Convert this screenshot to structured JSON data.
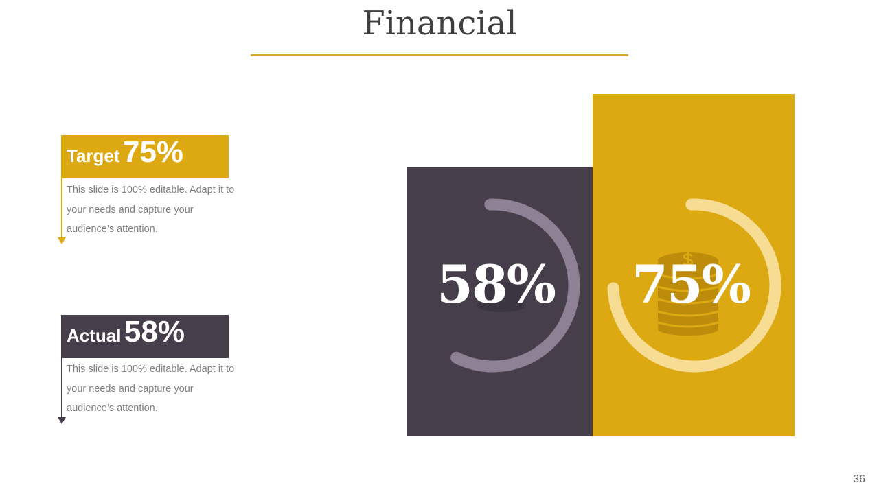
{
  "title": "Financial",
  "target": {
    "word": "Target",
    "pct": "75%",
    "description": "This slide is 100% editable. Adapt it to your needs and capture your audience’s attention.",
    "value": 75
  },
  "actual": {
    "word": "Actual",
    "pct": "58%",
    "description": "This slide is 100% editable. Adapt it to your needs and capture your audience’s attention.",
    "value": 58
  },
  "chart": {
    "actual_label": "58%",
    "target_label": "75%",
    "icon": "coins-stack-icon"
  },
  "colors": {
    "gold": "#dca912",
    "dark": "#463e4a",
    "ring_dark": "#8e8196",
    "ring_gold": "#f7dc94",
    "coin_gold": "#b8870a",
    "coin_dark": "#3a3340"
  },
  "slide_number": "36"
}
